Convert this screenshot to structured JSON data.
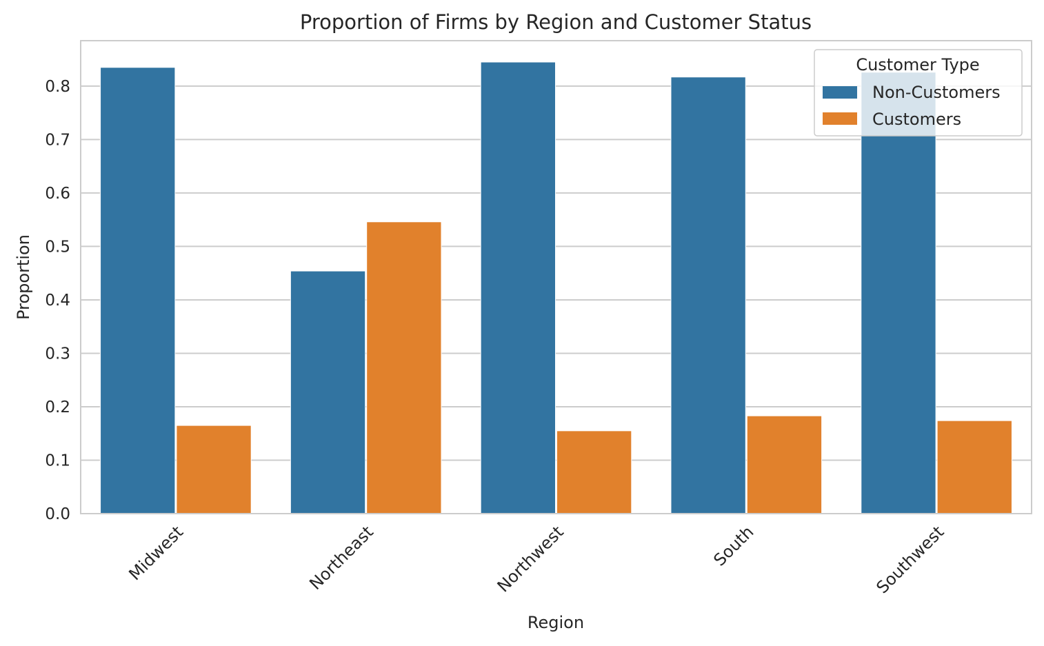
{
  "chart_data": {
    "type": "bar",
    "title": "Proportion of Firms by Region and Customer Status",
    "xlabel": "Region",
    "ylabel": "Proportion",
    "categories": [
      "Midwest",
      "Northeast",
      "Northwest",
      "South",
      "Southwest"
    ],
    "series": [
      {
        "name": "Non-Customers",
        "color": "#3274a1",
        "values": [
          0.835,
          0.454,
          0.845,
          0.817,
          0.826
        ]
      },
      {
        "name": "Customers",
        "color": "#e1812c",
        "values": [
          0.165,
          0.546,
          0.155,
          0.183,
          0.174
        ]
      }
    ],
    "ylim": [
      0,
      0.885
    ],
    "yticks": [
      "0.0",
      "0.1",
      "0.2",
      "0.3",
      "0.4",
      "0.5",
      "0.6",
      "0.7",
      "0.8"
    ],
    "grid": true,
    "legend": {
      "title": "Customer Type",
      "placement": "top-right"
    }
  }
}
